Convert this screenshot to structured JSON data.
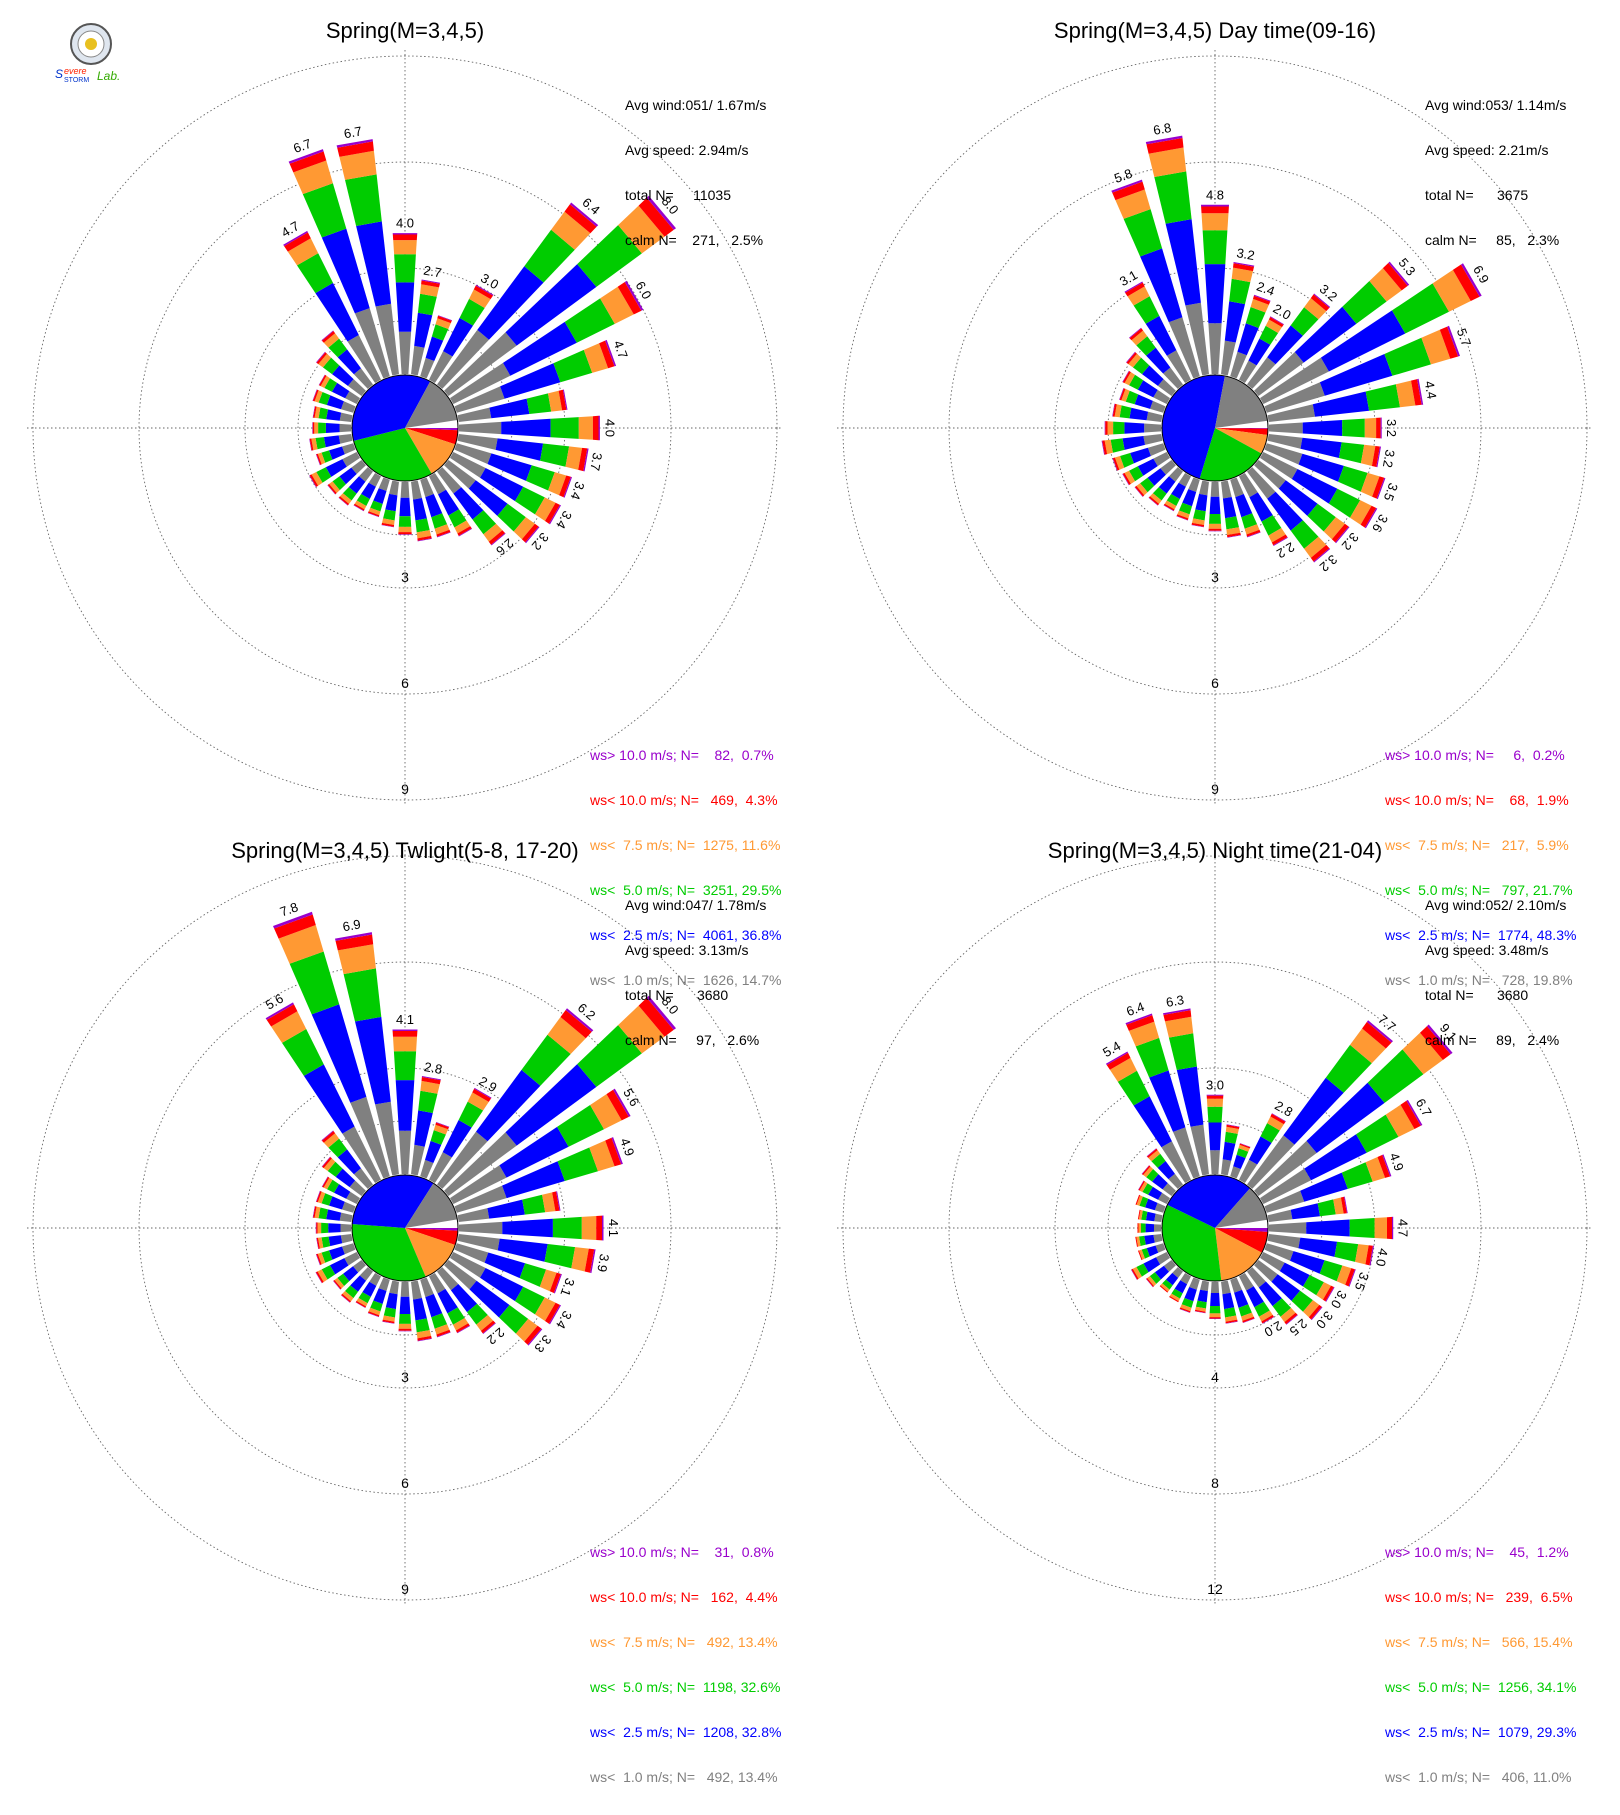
{
  "colors": {
    "gt10": "#9900cc",
    "lt10": "#ff0000",
    "lt75": "#ff9933",
    "lt50": "#00cc00",
    "lt25": "#0000ff",
    "lt10ms": "#808080"
  },
  "logo": {
    "text": "Severe Storm Lab."
  },
  "chart_data": [
    {
      "type": "windrose",
      "title": "Spring(M=3,4,5)",
      "avg_wind": "Avg wind:051/ 1.67m/s",
      "avg_speed": "Avg speed: 2.94m/s",
      "total_n": "total N=     11035",
      "calm_n": "calm N=    271,   2.5%",
      "rings": [
        "3",
        "6",
        "9"
      ],
      "ring_max": 9,
      "legend": [
        {
          "key": "gt10",
          "label": "ws> 10.0 m/s; N=    82,  0.7%"
        },
        {
          "key": "lt10",
          "label": "ws< 10.0 m/s; N=   469,  4.3%"
        },
        {
          "key": "lt75",
          "label": "ws<  7.5 m/s; N=  1275, 11.6%"
        },
        {
          "key": "lt50",
          "label": "ws<  5.0 m/s; N=  3251, 29.5%"
        },
        {
          "key": "lt25",
          "label": "ws<  2.5 m/s; N=  4061, 36.8%"
        },
        {
          "key": "lt10ms",
          "label": "ws<  1.0 m/s; N=  1626, 14.7%"
        }
      ],
      "pie": [
        0.7,
        4.3,
        11.6,
        29.5,
        36.8,
        14.7
      ],
      "directions": [
        {
          "dir": 0,
          "total": 4.0,
          "label": "4.0"
        },
        {
          "dir": 10,
          "total": 2.7,
          "label": "2.7"
        },
        {
          "dir": 20,
          "total": 1.8
        },
        {
          "dir": 30,
          "total": 3.0,
          "label": "3.0"
        },
        {
          "dir": 40,
          "total": 6.4,
          "label": "6.4"
        },
        {
          "dir": 50,
          "total": 8.0,
          "label": "8.0"
        },
        {
          "dir": 60,
          "total": 6.0,
          "label": "6.0"
        },
        {
          "dir": 70,
          "total": 4.7,
          "label": "4.7"
        },
        {
          "dir": 80,
          "total": 3.1
        },
        {
          "dir": 90,
          "total": 4.0,
          "label": "4.0"
        },
        {
          "dir": 100,
          "total": 3.7,
          "label": "3.7"
        },
        {
          "dir": 110,
          "total": 3.4,
          "label": "3.4"
        },
        {
          "dir": 120,
          "total": 3.4,
          "label": "3.4"
        },
        {
          "dir": 130,
          "total": 3.2,
          "label": "3.2"
        },
        {
          "dir": 140,
          "total": 2.6,
          "label": "2.6"
        },
        {
          "dir": 150,
          "total": 1.9
        },
        {
          "dir": 160,
          "total": 1.7
        },
        {
          "dir": 170,
          "total": 1.7
        },
        {
          "dir": 180,
          "total": 1.5
        },
        {
          "dir": 190,
          "total": 1.3
        },
        {
          "dir": 200,
          "total": 1.1
        },
        {
          "dir": 210,
          "total": 1.1
        },
        {
          "dir": 220,
          "total": 1.2
        },
        {
          "dir": 230,
          "total": 1.2
        },
        {
          "dir": 240,
          "total": 1.5
        },
        {
          "dir": 250,
          "total": 1.1
        },
        {
          "dir": 260,
          "total": 1.2
        },
        {
          "dir": 270,
          "total": 1.1
        },
        {
          "dir": 280,
          "total": 1.1
        },
        {
          "dir": 290,
          "total": 1.2
        },
        {
          "dir": 300,
          "total": 1.2
        },
        {
          "dir": 310,
          "total": 1.6
        },
        {
          "dir": 320,
          "total": 1.9
        },
        {
          "dir": 330,
          "total": 4.7,
          "label": "4.7"
        },
        {
          "dir": 340,
          "total": 6.7,
          "label": "6.7"
        },
        {
          "dir": 350,
          "total": 6.7,
          "label": "6.7"
        }
      ]
    },
    {
      "type": "windrose",
      "title": "Spring(M=3,4,5) Day time(09-16)",
      "avg_wind": "Avg wind:053/ 1.14m/s",
      "avg_speed": "Avg speed: 2.21m/s",
      "total_n": "total N=      3675",
      "calm_n": "calm N=     85,   2.3%",
      "rings": [
        "3",
        "6",
        "9"
      ],
      "ring_max": 9,
      "legend": [
        {
          "key": "gt10",
          "label": "ws> 10.0 m/s; N=     6,  0.2%"
        },
        {
          "key": "lt10",
          "label": "ws< 10.0 m/s; N=    68,  1.9%"
        },
        {
          "key": "lt75",
          "label": "ws<  7.5 m/s; N=   217,  5.9%"
        },
        {
          "key": "lt50",
          "label": "ws<  5.0 m/s; N=   797, 21.7%"
        },
        {
          "key": "lt25",
          "label": "ws<  2.5 m/s; N=  1774, 48.3%"
        },
        {
          "key": "lt10ms",
          "label": "ws<  1.0 m/s; N=   728, 19.8%"
        }
      ],
      "pie": [
        0.2,
        1.9,
        5.9,
        21.7,
        48.3,
        19.8
      ],
      "directions": [
        {
          "dir": 0,
          "total": 4.8,
          "label": "4.8"
        },
        {
          "dir": 10,
          "total": 3.2,
          "label": "3.2"
        },
        {
          "dir": 20,
          "total": 2.4,
          "label": "2.4"
        },
        {
          "dir": 30,
          "total": 2.0,
          "label": "2.0"
        },
        {
          "dir": 40,
          "total": 3.2,
          "label": "3.2"
        },
        {
          "dir": 50,
          "total": 5.3,
          "label": "5.3"
        },
        {
          "dir": 60,
          "total": 6.9,
          "label": "6.9"
        },
        {
          "dir": 70,
          "total": 5.7,
          "label": "5.7"
        },
        {
          "dir": 80,
          "total": 4.4,
          "label": "4.4"
        },
        {
          "dir": 90,
          "total": 3.2,
          "label": "3.2"
        },
        {
          "dir": 100,
          "total": 3.2,
          "label": "3.2"
        },
        {
          "dir": 110,
          "total": 3.5,
          "label": "3.5"
        },
        {
          "dir": 120,
          "total": 3.6,
          "label": "3.6"
        },
        {
          "dir": 130,
          "total": 3.2,
          "label": "3.2"
        },
        {
          "dir": 140,
          "total": 3.2,
          "label": "3.2"
        },
        {
          "dir": 150,
          "total": 2.2,
          "label": "2.2"
        },
        {
          "dir": 160,
          "total": 1.7
        },
        {
          "dir": 170,
          "total": 1.6
        },
        {
          "dir": 180,
          "total": 1.4
        },
        {
          "dir": 190,
          "total": 1.3
        },
        {
          "dir": 200,
          "total": 1.2
        },
        {
          "dir": 210,
          "total": 1.1
        },
        {
          "dir": 220,
          "total": 1.2
        },
        {
          "dir": 230,
          "total": 1.3
        },
        {
          "dir": 240,
          "total": 1.4
        },
        {
          "dir": 250,
          "total": 1.5
        },
        {
          "dir": 260,
          "total": 1.7
        },
        {
          "dir": 270,
          "total": 1.6
        },
        {
          "dir": 280,
          "total": 1.4
        },
        {
          "dir": 290,
          "total": 1.3
        },
        {
          "dir": 300,
          "total": 1.4
        },
        {
          "dir": 310,
          "total": 1.6
        },
        {
          "dir": 320,
          "total": 2.0
        },
        {
          "dir": 330,
          "total": 3.1,
          "label": "3.1"
        },
        {
          "dir": 340,
          "total": 5.8,
          "label": "5.8"
        },
        {
          "dir": 350,
          "total": 6.8,
          "label": "6.8"
        }
      ]
    },
    {
      "type": "windrose",
      "title": "Spring(M=3,4,5) Twlight(5-8, 17-20)",
      "avg_wind": "Avg wind:047/ 1.78m/s",
      "avg_speed": "Avg speed: 3.13m/s",
      "total_n": "total N=      3680",
      "calm_n": "calm N=     97,   2.6%",
      "rings": [
        "3",
        "6",
        "9"
      ],
      "ring_max": 9,
      "legend": [
        {
          "key": "gt10",
          "label": "ws> 10.0 m/s; N=    31,  0.8%"
        },
        {
          "key": "lt10",
          "label": "ws< 10.0 m/s; N=   162,  4.4%"
        },
        {
          "key": "lt75",
          "label": "ws<  7.5 m/s; N=   492, 13.4%"
        },
        {
          "key": "lt50",
          "label": "ws<  5.0 m/s; N=  1198, 32.6%"
        },
        {
          "key": "lt25",
          "label": "ws<  2.5 m/s; N=  1208, 32.8%"
        },
        {
          "key": "lt10ms",
          "label": "ws<  1.0 m/s; N=   492, 13.4%"
        }
      ],
      "pie": [
        0.8,
        4.4,
        13.4,
        32.6,
        32.8,
        13.4
      ],
      "directions": [
        {
          "dir": 0,
          "total": 4.1,
          "label": "4.1"
        },
        {
          "dir": 10,
          "total": 2.8,
          "label": "2.8"
        },
        {
          "dir": 20,
          "total": 1.6
        },
        {
          "dir": 30,
          "total": 2.9,
          "label": "2.9"
        },
        {
          "dir": 40,
          "total": 6.2,
          "label": "6.2"
        },
        {
          "dir": 50,
          "total": 8.0,
          "label": "8.0"
        },
        {
          "dir": 60,
          "total": 5.6,
          "label": "5.6"
        },
        {
          "dir": 70,
          "total": 4.9,
          "label": "4.9"
        },
        {
          "dir": 80,
          "total": 2.9
        },
        {
          "dir": 90,
          "total": 4.1,
          "label": "4.1"
        },
        {
          "dir": 100,
          "total": 3.9,
          "label": "3.9"
        },
        {
          "dir": 110,
          "total": 3.1,
          "label": "3.1"
        },
        {
          "dir": 120,
          "total": 3.4,
          "label": "3.4"
        },
        {
          "dir": 130,
          "total": 3.3,
          "label": "3.3"
        },
        {
          "dir": 140,
          "total": 2.2,
          "label": "2.2"
        },
        {
          "dir": 150,
          "total": 1.8
        },
        {
          "dir": 160,
          "total": 1.7
        },
        {
          "dir": 170,
          "total": 1.7
        },
        {
          "dir": 180,
          "total": 1.4
        },
        {
          "dir": 190,
          "total": 1.2
        },
        {
          "dir": 200,
          "total": 1.1
        },
        {
          "dir": 210,
          "total": 1.0
        },
        {
          "dir": 220,
          "total": 1.1
        },
        {
          "dir": 230,
          "total": 1.0
        },
        {
          "dir": 240,
          "total": 1.3
        },
        {
          "dir": 250,
          "total": 1.1
        },
        {
          "dir": 260,
          "total": 1.0
        },
        {
          "dir": 270,
          "total": 1.0
        },
        {
          "dir": 280,
          "total": 1.1
        },
        {
          "dir": 290,
          "total": 1.1
        },
        {
          "dir": 300,
          "total": 1.1
        },
        {
          "dir": 310,
          "total": 1.4
        },
        {
          "dir": 320,
          "total": 1.9
        },
        {
          "dir": 330,
          "total": 5.6,
          "label": "5.6"
        },
        {
          "dir": 340,
          "total": 7.8,
          "label": "7.8"
        },
        {
          "dir": 350,
          "total": 6.9,
          "label": "6.9"
        }
      ]
    },
    {
      "type": "windrose",
      "title": "Spring(M=3,4,5) Night time(21-04)",
      "avg_wind": "Avg wind:052/ 2.10m/s",
      "avg_speed": "Avg speed: 3.48m/s",
      "total_n": "total N=      3680",
      "calm_n": "calm N=     89,   2.4%",
      "rings": [
        "4",
        "8",
        "12"
      ],
      "ring_max": 12,
      "legend": [
        {
          "key": "gt10",
          "label": "ws> 10.0 m/s; N=    45,  1.2%"
        },
        {
          "key": "lt10",
          "label": "ws< 10.0 m/s; N=   239,  6.5%"
        },
        {
          "key": "lt75",
          "label": "ws<  7.5 m/s; N=   566, 15.4%"
        },
        {
          "key": "lt50",
          "label": "ws<  5.0 m/s; N=  1256, 34.1%"
        },
        {
          "key": "lt25",
          "label": "ws<  2.5 m/s; N=  1079, 29.3%"
        },
        {
          "key": "lt10ms",
          "label": "ws<  1.0 m/s; N=   406, 11.0%"
        }
      ],
      "pie": [
        1.2,
        6.5,
        15.4,
        34.1,
        29.3,
        11.0
      ],
      "directions": [
        {
          "dir": 0,
          "total": 3.0,
          "label": "3.0"
        },
        {
          "dir": 10,
          "total": 1.9
        },
        {
          "dir": 20,
          "total": 1.3
        },
        {
          "dir": 30,
          "total": 2.8,
          "label": "2.8"
        },
        {
          "dir": 40,
          "total": 7.7,
          "label": "7.7"
        },
        {
          "dir": 50,
          "total": 9.1,
          "label": "9.1"
        },
        {
          "dir": 60,
          "total": 6.7,
          "label": "6.7"
        },
        {
          "dir": 70,
          "total": 4.9,
          "label": "4.9"
        },
        {
          "dir": 80,
          "total": 3.0
        },
        {
          "dir": 90,
          "total": 4.7,
          "label": "4.7"
        },
        {
          "dir": 100,
          "total": 4.0,
          "label": "4.0"
        },
        {
          "dir": 110,
          "total": 3.5,
          "label": "3.5"
        },
        {
          "dir": 120,
          "total": 3.0,
          "label": "3.0"
        },
        {
          "dir": 130,
          "total": 3.0,
          "label": "3.0"
        },
        {
          "dir": 140,
          "total": 2.5,
          "label": "2.5"
        },
        {
          "dir": 150,
          "total": 2.0,
          "label": "2.0"
        },
        {
          "dir": 160,
          "total": 1.7
        },
        {
          "dir": 170,
          "total": 1.6
        },
        {
          "dir": 180,
          "total": 1.4
        },
        {
          "dir": 190,
          "total": 1.2
        },
        {
          "dir": 200,
          "total": 1.3
        },
        {
          "dir": 210,
          "total": 1.1
        },
        {
          "dir": 220,
          "total": 1.0
        },
        {
          "dir": 230,
          "total": 1.2
        },
        {
          "dir": 240,
          "total": 1.5
        },
        {
          "dir": 250,
          "total": 1.0
        },
        {
          "dir": 260,
          "total": 1.0
        },
        {
          "dir": 270,
          "total": 0.9
        },
        {
          "dir": 280,
          "total": 0.9
        },
        {
          "dir": 290,
          "total": 1.1
        },
        {
          "dir": 300,
          "total": 1.2
        },
        {
          "dir": 310,
          "total": 1.4
        },
        {
          "dir": 320,
          "total": 1.7
        },
        {
          "dir": 330,
          "total": 5.4,
          "label": "5.4"
        },
        {
          "dir": 340,
          "total": 6.4,
          "label": "6.4"
        },
        {
          "dir": 350,
          "total": 6.3,
          "label": "6.3"
        }
      ]
    }
  ]
}
